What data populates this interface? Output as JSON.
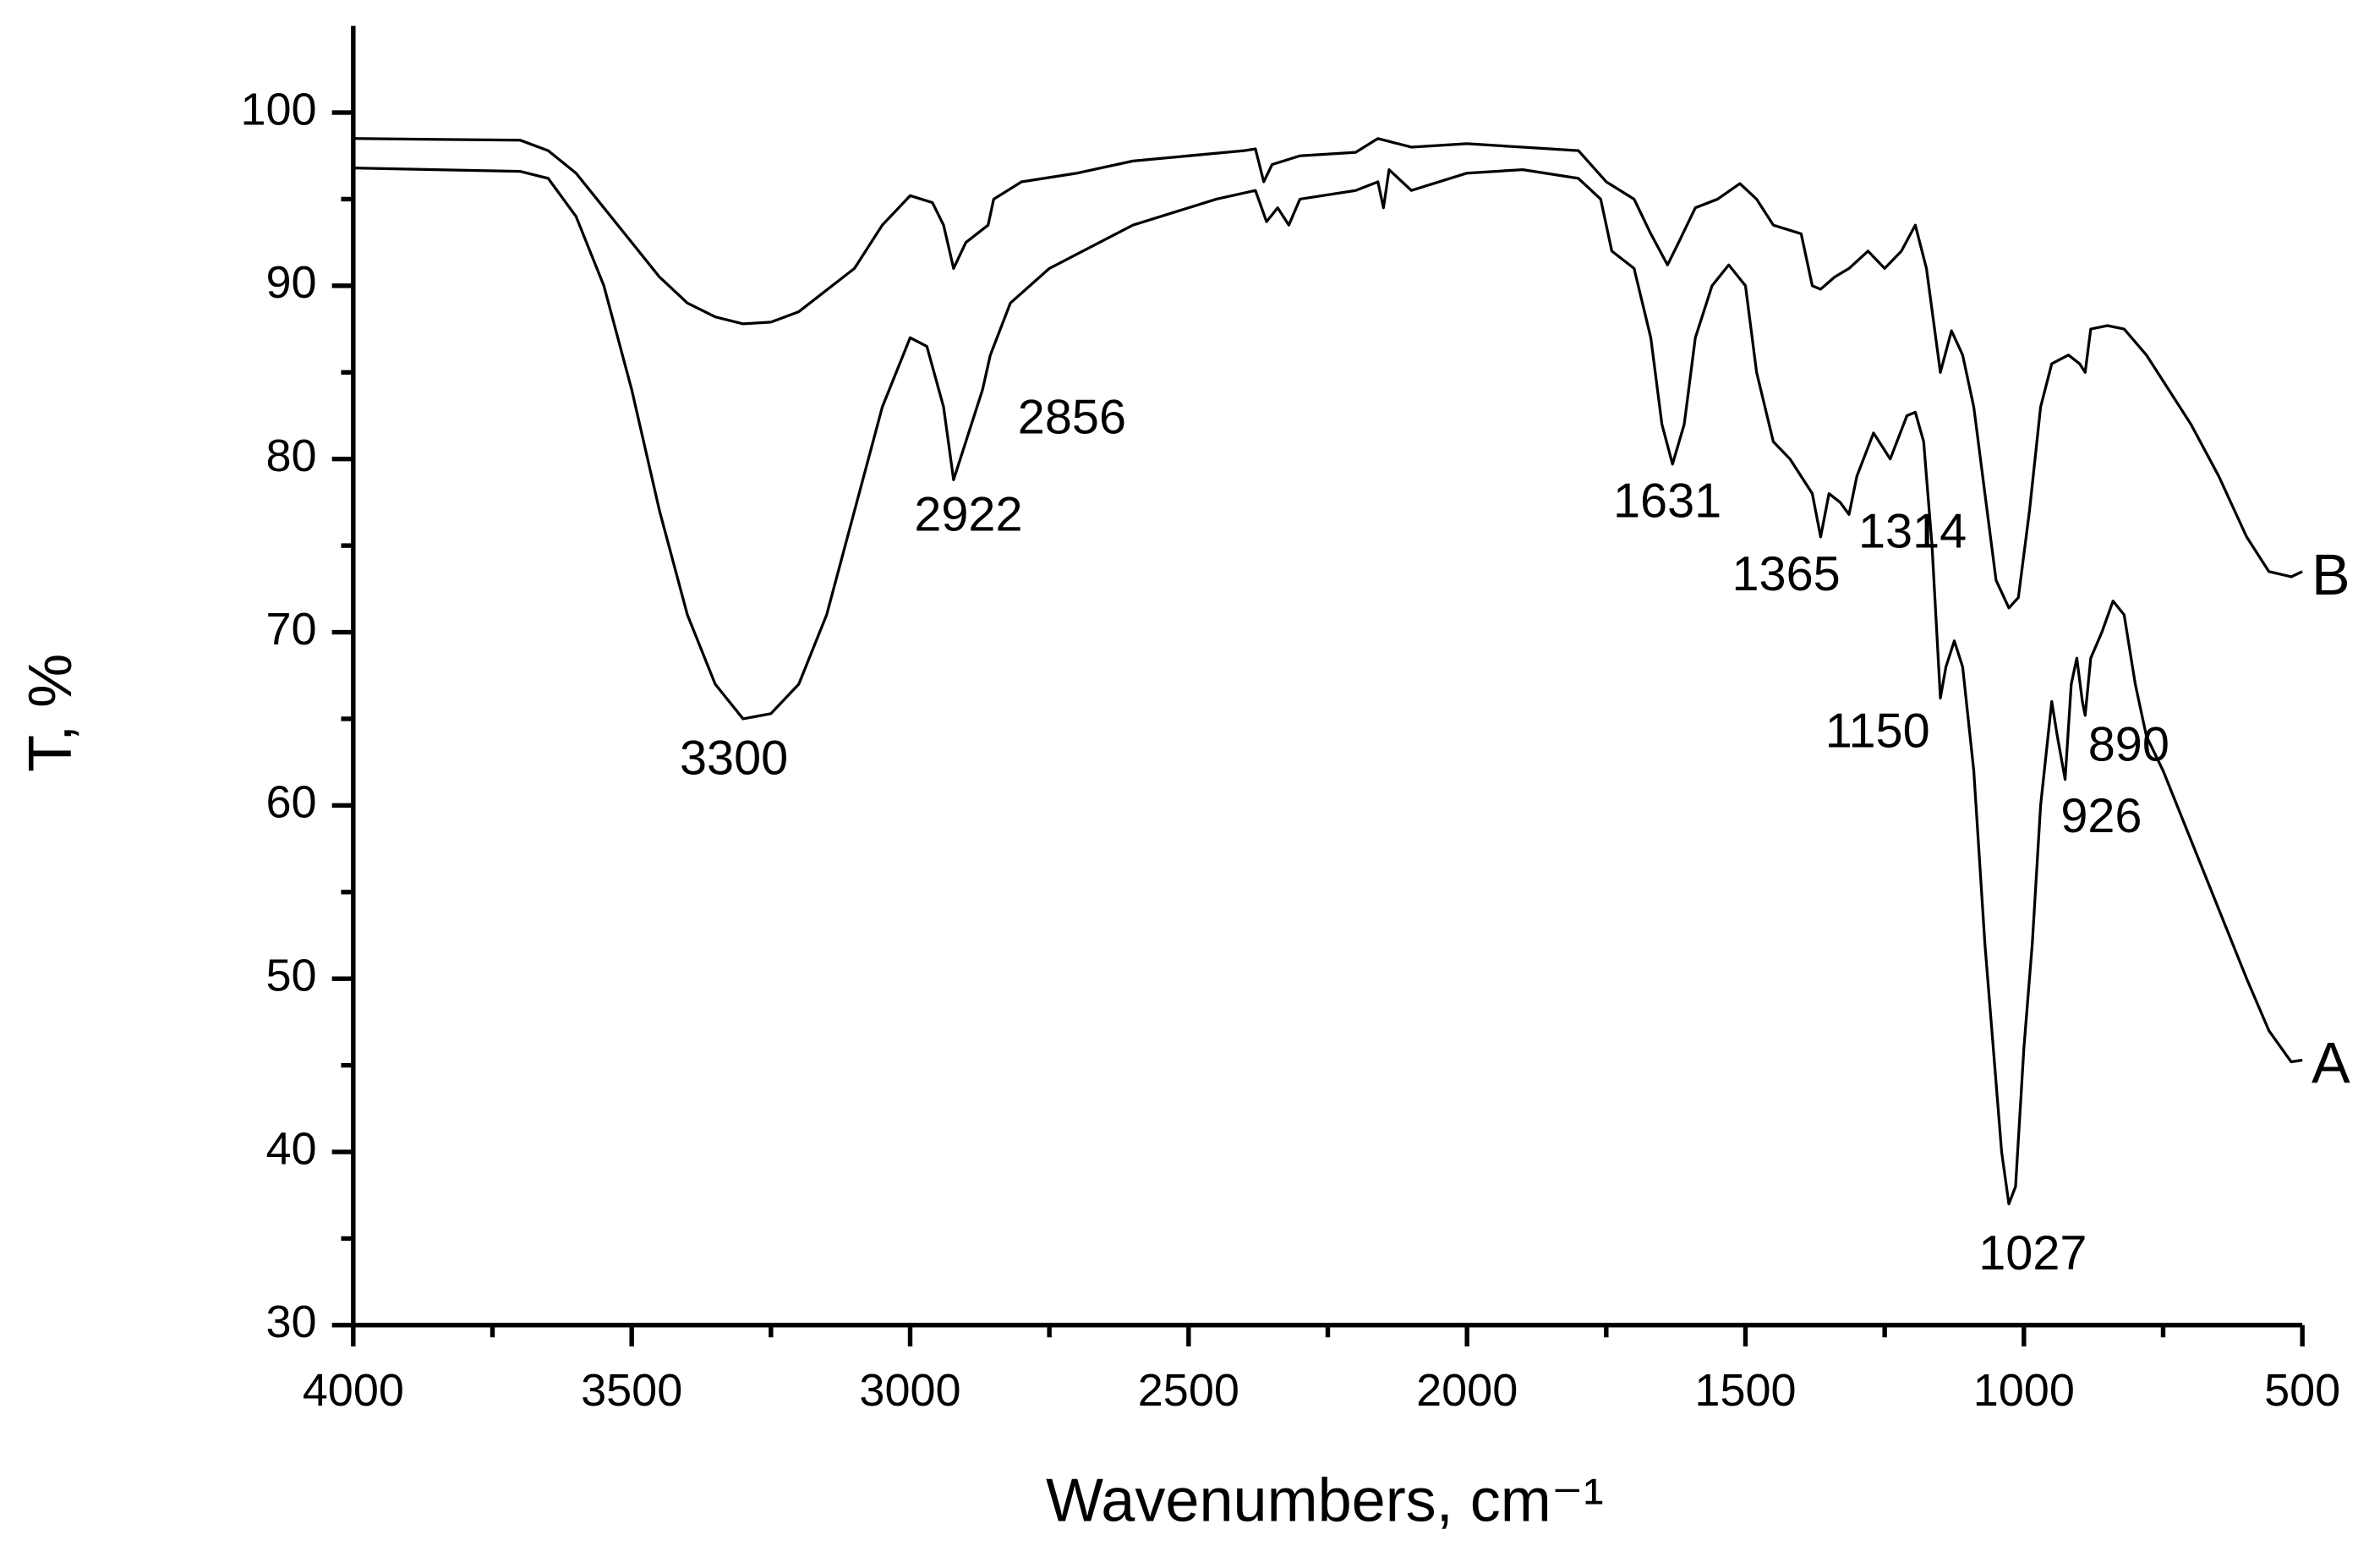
{
  "chart_data": {
    "type": "line",
    "xlabel": "Wavenumbers, cm⁻¹",
    "ylabel": "T, %",
    "xlim": [
      4000,
      500
    ],
    "ylim": [
      30,
      105
    ],
    "xticks": [
      4000,
      3500,
      3000,
      2500,
      2000,
      1500,
      1000,
      500
    ],
    "xminorticks": [
      3750,
      3250,
      2750,
      2250,
      1750,
      1250,
      750
    ],
    "yticks": [
      30,
      40,
      50,
      60,
      70,
      80,
      90,
      100
    ],
    "yminorticks": [
      35,
      45,
      55,
      65,
      75,
      85,
      95
    ],
    "color": "#000000",
    "series": [
      {
        "name": "A",
        "color": "#000000",
        "x": [
          4000,
          3700,
          3650,
          3600,
          3550,
          3500,
          3450,
          3400,
          3350,
          3300,
          3250,
          3200,
          3150,
          3100,
          3050,
          3000,
          2970,
          2940,
          2922,
          2900,
          2870,
          2856,
          2820,
          2750,
          2600,
          2450,
          2380,
          2360,
          2340,
          2320,
          2300,
          2200,
          2160,
          2150,
          2140,
          2100,
          2000,
          1900,
          1800,
          1760,
          1740,
          1700,
          1670,
          1650,
          1631,
          1610,
          1590,
          1560,
          1530,
          1500,
          1480,
          1450,
          1420,
          1400,
          1380,
          1365,
          1350,
          1330,
          1314,
          1300,
          1270,
          1240,
          1210,
          1195,
          1180,
          1165,
          1150,
          1140,
          1125,
          1110,
          1090,
          1070,
          1050,
          1040,
          1027,
          1015,
          1000,
          985,
          970,
          950,
          940,
          926,
          915,
          905,
          895,
          890,
          880,
          860,
          840,
          820,
          800,
          780,
          750,
          700,
          650,
          600,
          560,
          520,
          500
        ],
        "values": [
          96.8,
          96.6,
          96.2,
          94,
          90,
          84,
          77,
          71,
          67,
          65,
          65.3,
          67,
          71,
          77,
          83,
          87,
          86.5,
          83,
          78.8,
          81,
          84,
          86,
          89,
          91,
          93.5,
          95,
          95.5,
          93.7,
          94.5,
          93.5,
          95,
          95.5,
          96,
          94.5,
          96.7,
          95.5,
          96.5,
          96.7,
          96.2,
          95,
          92,
          91,
          87,
          82,
          79.7,
          82,
          87,
          90,
          91.2,
          90,
          85,
          81,
          80,
          79,
          78,
          75.5,
          78,
          77.5,
          76.8,
          79,
          81.5,
          80,
          82.5,
          82.7,
          81,
          75,
          66.2,
          68,
          69.5,
          68,
          62,
          52,
          44,
          40,
          37,
          38,
          46,
          52,
          60,
          66,
          64,
          61.5,
          67,
          68.5,
          66,
          65.2,
          68.5,
          70,
          71.8,
          71,
          67,
          64,
          62,
          58,
          54,
          50,
          47,
          45.2,
          45.3
        ]
      },
      {
        "name": "B",
        "color": "#000000",
        "x": [
          4000,
          3700,
          3650,
          3600,
          3550,
          3500,
          3450,
          3400,
          3350,
          3300,
          3250,
          3200,
          3100,
          3050,
          3000,
          2960,
          2940,
          2922,
          2900,
          2860,
          2850,
          2800,
          2700,
          2600,
          2400,
          2380,
          2365,
          2350,
          2300,
          2200,
          2160,
          2100,
          2000,
          1900,
          1800,
          1750,
          1700,
          1670,
          1640,
          1620,
          1590,
          1550,
          1510,
          1480,
          1450,
          1400,
          1380,
          1365,
          1340,
          1314,
          1280,
          1250,
          1220,
          1195,
          1175,
          1150,
          1130,
          1110,
          1090,
          1070,
          1050,
          1027,
          1010,
          990,
          970,
          950,
          920,
          900,
          890,
          880,
          850,
          820,
          780,
          700,
          650,
          600,
          560,
          520,
          500
        ],
        "values": [
          98.5,
          98.4,
          97.8,
          96.5,
          94.5,
          92.5,
          90.5,
          89,
          88.2,
          87.8,
          87.9,
          88.5,
          91,
          93.5,
          95.2,
          94.8,
          93.5,
          91,
          92.5,
          93.5,
          95,
          96,
          96.5,
          97.2,
          97.8,
          97.9,
          96,
          97,
          97.5,
          97.7,
          98.5,
          98,
          98.2,
          98,
          97.8,
          96,
          95,
          93,
          91.2,
          92.5,
          94.5,
          95,
          95.9,
          95,
          93.5,
          93,
          90,
          89.8,
          90.5,
          91,
          92,
          91,
          92,
          93.5,
          91,
          85,
          87.4,
          86,
          83,
          78,
          73,
          71.4,
          72,
          77,
          83,
          85.5,
          86,
          85.5,
          85,
          87.5,
          87.7,
          87.5,
          86,
          82,
          79,
          75.5,
          73.5,
          73.2,
          73.5
        ]
      }
    ],
    "annotations": [
      "3300",
      "2922",
      "2856",
      "1631",
      "1365",
      "1314",
      "1150",
      "1027",
      "890",
      "926"
    ]
  }
}
